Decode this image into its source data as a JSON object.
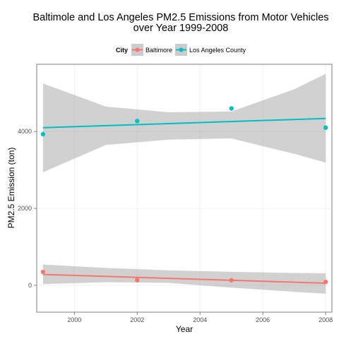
{
  "chart_data": {
    "type": "scatter",
    "title_lines": [
      "Baltimole and Los Angeles PM2.5 Emissions from Motor Vehicles",
      "over Year 1999-2008"
    ],
    "xlabel": "Year",
    "ylabel": "PM2.5 Emission (ton)",
    "xlim": [
      1998.8,
      2008.2
    ],
    "ylim": [
      -700,
      5750
    ],
    "x_ticks": [
      2000,
      2002,
      2004,
      2006,
      2008
    ],
    "y_ticks": [
      0,
      2000,
      4000
    ],
    "grid": true,
    "legend": {
      "title": "City",
      "position": "top"
    },
    "series": [
      {
        "name": "Baltimore",
        "color": "#F8766D",
        "points": [
          [
            1999,
            347
          ],
          [
            2002,
            134
          ],
          [
            2005,
            131
          ],
          [
            2008,
            88
          ]
        ],
        "trend": {
          "x": [
            1999,
            2008
          ],
          "y": [
            281,
            54
          ]
        },
        "band": {
          "x": [
            1999,
            2001,
            2003,
            2005,
            2007,
            2008
          ],
          "upper": [
            540,
            450,
            390,
            350,
            320,
            310
          ],
          "lower": [
            30,
            80,
            60,
            -60,
            -170,
            -220
          ]
        }
      },
      {
        "name": "Los Angeles County",
        "color": "#00BFC4",
        "points": [
          [
            1999,
            3931
          ],
          [
            2002,
            4274
          ],
          [
            2005,
            4601
          ],
          [
            2008,
            4101
          ]
        ],
        "trend": {
          "x": [
            1999,
            2008
          ],
          "y": [
            4100,
            4340
          ]
        },
        "band": {
          "x": [
            1999,
            2001,
            2003,
            2005,
            2007,
            2008
          ],
          "upper": [
            5250,
            4650,
            4500,
            4520,
            5100,
            5500
          ],
          "lower": [
            2940,
            3650,
            3790,
            3820,
            3420,
            3190
          ]
        }
      }
    ]
  }
}
